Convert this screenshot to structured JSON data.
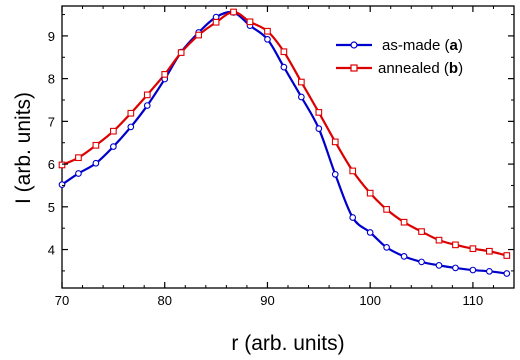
{
  "chart_data": {
    "type": "line",
    "xlabel": "r (arb. units)",
    "ylabel": "I (arb. units)",
    "xlim": [
      70,
      114
    ],
    "ylim": [
      3.1,
      9.7
    ],
    "xticks": [
      70,
      80,
      90,
      100,
      110
    ],
    "yticks": [
      4,
      5,
      6,
      7,
      8,
      9
    ],
    "grid": false,
    "legend_position": "top-right",
    "series": [
      {
        "name": "as-made",
        "label_suffix": "a",
        "color": "#0000cc",
        "marker": "circle",
        "x": [
          70.0,
          71.6,
          73.3,
          75.0,
          76.7,
          78.3,
          80.0,
          81.6,
          83.3,
          85.0,
          86.7,
          88.3,
          90.0,
          91.6,
          93.3,
          95.0,
          96.6,
          98.3,
          100.0,
          101.6,
          103.3,
          105.0,
          106.7,
          108.3,
          110.0,
          111.6,
          113.3
        ],
        "y": [
          5.52,
          5.78,
          6.02,
          6.41,
          6.87,
          7.37,
          7.99,
          8.62,
          9.08,
          9.44,
          9.55,
          9.24,
          8.92,
          8.27,
          7.57,
          6.83,
          5.76,
          4.75,
          4.4,
          4.05,
          3.84,
          3.71,
          3.63,
          3.57,
          3.52,
          3.49,
          3.44
        ]
      },
      {
        "name": "annealed",
        "label_suffix": "b",
        "color": "#dd0000",
        "marker": "square",
        "x": [
          70.0,
          71.6,
          73.3,
          75.0,
          76.7,
          78.3,
          80.0,
          81.6,
          83.3,
          85.0,
          86.7,
          88.3,
          90.0,
          91.6,
          93.3,
          95.0,
          96.6,
          98.3,
          100.0,
          101.6,
          103.3,
          105.0,
          106.7,
          108.3,
          110.0,
          111.6,
          113.3
        ],
        "y": [
          5.98,
          6.15,
          6.44,
          6.77,
          7.19,
          7.62,
          8.1,
          8.61,
          9.02,
          9.32,
          9.56,
          9.33,
          9.11,
          8.63,
          7.92,
          7.21,
          6.52,
          5.84,
          5.32,
          4.94,
          4.64,
          4.42,
          4.22,
          4.11,
          4.02,
          3.96,
          3.86
        ]
      }
    ]
  }
}
